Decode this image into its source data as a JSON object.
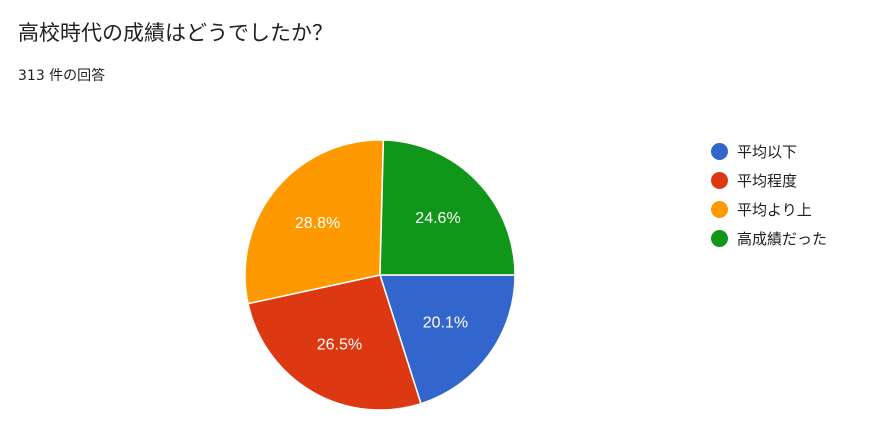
{
  "question": {
    "title": "高校時代の成績はどうでしたか？",
    "response_count": "313 件の回答"
  },
  "chart_data": {
    "type": "pie",
    "slices": [
      {
        "label": "平均以下",
        "value": 20.1,
        "display": "20.1%",
        "color": "#3366cc"
      },
      {
        "label": "平均程度",
        "value": 26.5,
        "display": "26.5%",
        "color": "#dc3912"
      },
      {
        "label": "平均より上",
        "value": 28.8,
        "display": "28.8%",
        "color": "#ff9900"
      },
      {
        "label": "高成績だった",
        "value": 24.6,
        "display": "24.6%",
        "color": "#109618"
      }
    ],
    "legend": [
      "平均以下",
      "平均程度",
      "平均より上",
      "高成績だった"
    ],
    "legend_position": "right",
    "title": "",
    "unit": "%"
  }
}
